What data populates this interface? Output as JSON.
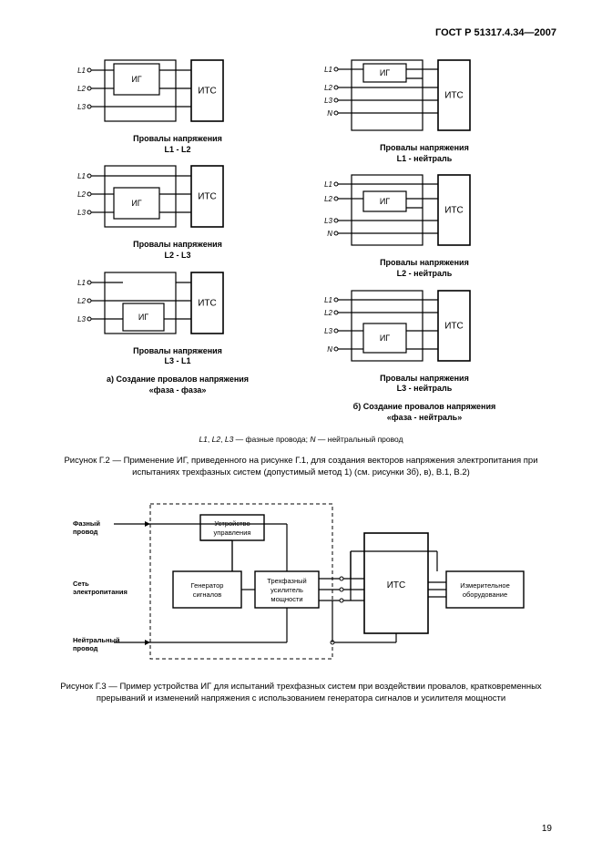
{
  "header": "ГОСТ Р 51317.4.34—2007",
  "pageNumber": "19",
  "gridCaptions": {
    "colA": "а) Создание провалов напряжения\n«фаза - фаза»",
    "colB": "б) Создание провалов напряжения\n«фаза - нейтраль»",
    "sub": [
      "Провалы напряжения\nL1 - L2",
      "Провалы напряжения\nL2 - L3",
      "Провалы напряжения\nL3 - L1",
      "Провалы напряжения\nL1 - нейтраль",
      "Провалы напряжения\nL2 - нейтраль",
      "Провалы напряжения\nL3 - нейтраль"
    ]
  },
  "labels": {
    "L1": "L1",
    "L2": "L2",
    "L3": "L3",
    "N": "N",
    "IG": "ИГ",
    "ITS": "ИТС"
  },
  "note": "L1, L2, L3 — фазные провода; N — нейтральный провод",
  "caption_g2": "Рисунок Г.2 — Применение ИГ, приведенного на рисунке Г.1, для создания векторов напряжения электропитания при испытаниях трехфазных систем (допустимый метод 1) (см. рисунки 3б), в), В.1, В.2)",
  "bottom": {
    "leftLabels": {
      "phase": "Фазный\nпровод",
      "net": "Сеть\nэлектропитания",
      "neutral": "Нейтральный\nпровод"
    },
    "boxes": {
      "control": "Устройство\nуправления",
      "gen": "Генератор\nсигналов",
      "amp": "Трехфазный\nусилитель\nмощности",
      "its": "ИТС",
      "meas": "Измерительное\nоборудование"
    }
  },
  "caption_g3": "Рисунок Г.3 — Пример устройства ИГ для испытаний трехфазных систем при воздействии провалов, кратковременных прерываний и изменений напряжения с использованием генератора сигналов и усилителя мощности",
  "style": {
    "stroke": "#000000",
    "strokeWidth": 1.2,
    "strokeWidthThick": 1.6,
    "fill": "#ffffff",
    "labelSize": 9,
    "boxLabelSize": 8
  }
}
